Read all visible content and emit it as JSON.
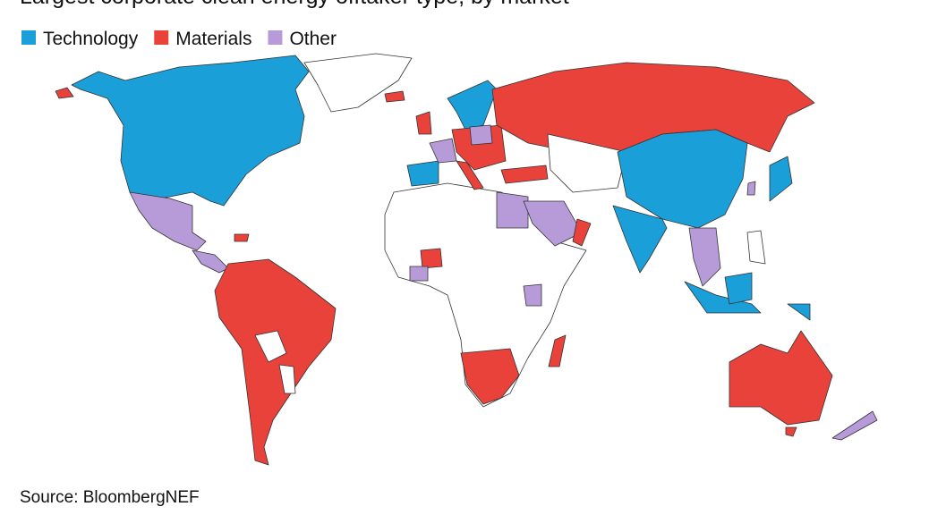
{
  "title": "Largest corporate clean energy offtaker type, by market",
  "legend": [
    {
      "label": "Technology",
      "color": "#1a9fd9"
    },
    {
      "label": "Materials",
      "color": "#e8423b"
    },
    {
      "label": "Other",
      "color": "#b79bd9"
    }
  ],
  "source": "Source: BloombergNEF"
}
